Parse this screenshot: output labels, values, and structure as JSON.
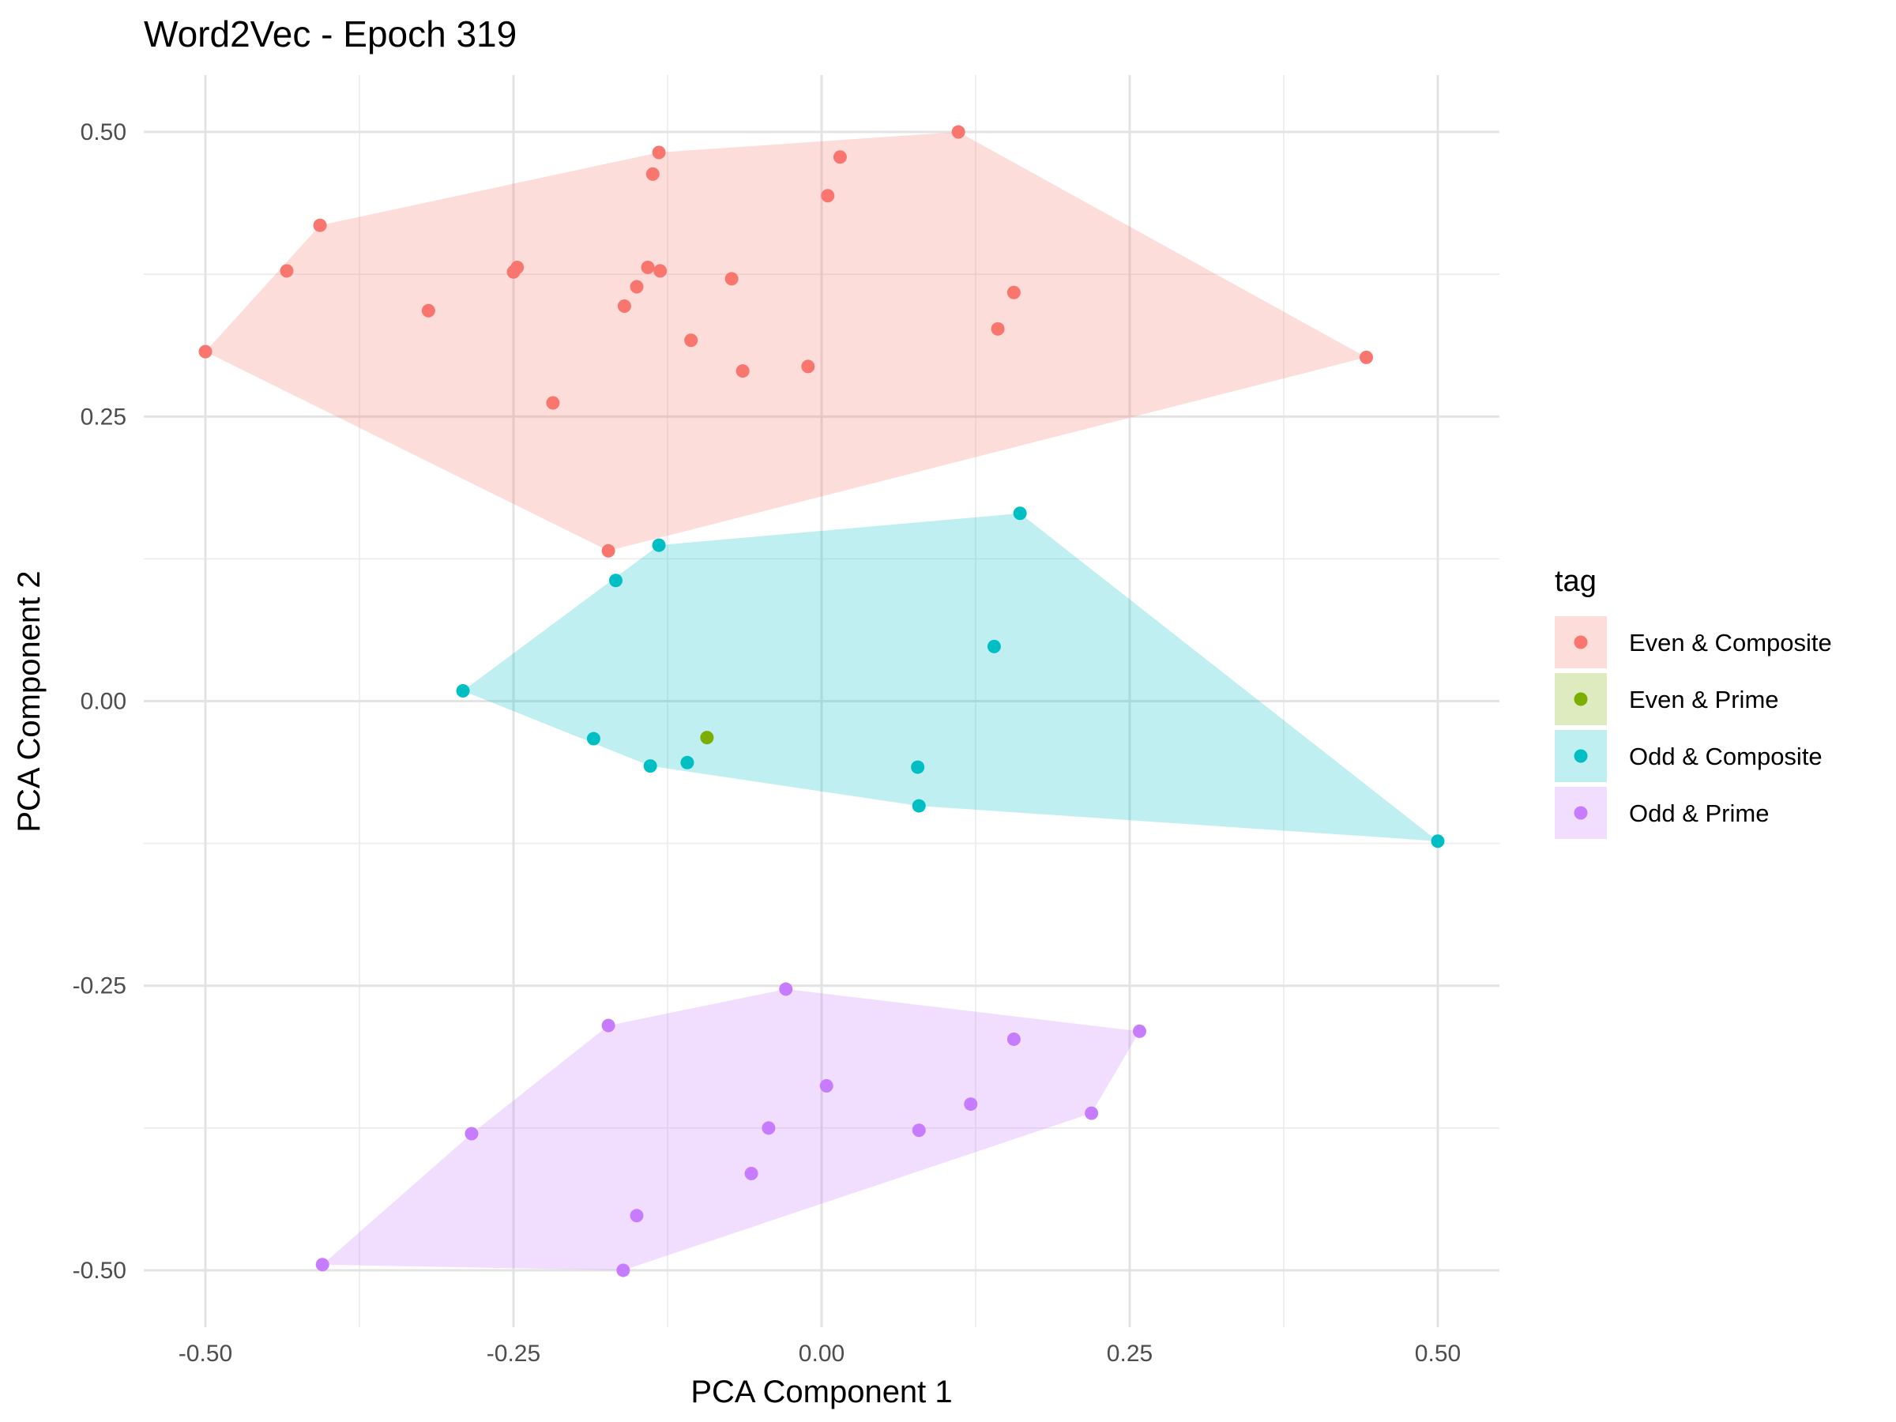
{
  "chart_data": {
    "type": "scatter",
    "title": "Word2Vec - Epoch 319",
    "xlabel": "PCA Component 1",
    "ylabel": "PCA Component 2",
    "xlim": [
      -0.55,
      0.55
    ],
    "ylim": [
      -0.55,
      0.55
    ],
    "x_ticks": [
      -0.5,
      -0.25,
      0.0,
      0.25,
      0.5
    ],
    "x_tick_labels": [
      "-0.50",
      "-0.25",
      "0.00",
      "0.25",
      "0.50"
    ],
    "y_ticks": [
      -0.5,
      -0.25,
      0.0,
      0.25,
      0.5
    ],
    "y_tick_labels": [
      "-0.50",
      "-0.25",
      "0.00",
      "0.25",
      "0.50"
    ],
    "grid": true,
    "legend_title": "tag",
    "legend_position": "right",
    "hulls": true,
    "series": [
      {
        "name": "Even & Composite",
        "color": "#F8766D",
        "points": [
          [
            -0.5,
            0.307
          ],
          [
            -0.434,
            0.378
          ],
          [
            -0.407,
            0.418
          ],
          [
            -0.319,
            0.343
          ],
          [
            -0.25,
            0.377
          ],
          [
            -0.247,
            0.381
          ],
          [
            -0.218,
            0.262
          ],
          [
            -0.173,
            0.132
          ],
          [
            -0.16,
            0.347
          ],
          [
            -0.15,
            0.364
          ],
          [
            -0.141,
            0.381
          ],
          [
            -0.137,
            0.463
          ],
          [
            -0.132,
            0.482
          ],
          [
            -0.131,
            0.378
          ],
          [
            -0.106,
            0.317
          ],
          [
            -0.073,
            0.371
          ],
          [
            -0.064,
            0.29
          ],
          [
            -0.011,
            0.294
          ],
          [
            0.005,
            0.444
          ],
          [
            0.015,
            0.478
          ],
          [
            0.111,
            0.5
          ],
          [
            0.143,
            0.327
          ],
          [
            0.156,
            0.359
          ],
          [
            0.442,
            0.302
          ]
        ]
      },
      {
        "name": "Even & Prime",
        "color": "#7CAE00",
        "points": [
          [
            -0.093,
            -0.032
          ]
        ]
      },
      {
        "name": "Odd & Composite",
        "color": "#00BFC4",
        "points": [
          [
            -0.291,
            0.009
          ],
          [
            -0.185,
            -0.033
          ],
          [
            -0.167,
            0.106
          ],
          [
            -0.139,
            -0.057
          ],
          [
            -0.132,
            0.137
          ],
          [
            -0.109,
            -0.054
          ],
          [
            0.078,
            -0.058
          ],
          [
            0.079,
            -0.092
          ],
          [
            0.14,
            0.048
          ],
          [
            0.161,
            0.165
          ],
          [
            0.5,
            -0.123
          ]
        ]
      },
      {
        "name": "Odd & Prime",
        "color": "#C77CFF",
        "points": [
          [
            -0.405,
            -0.495
          ],
          [
            -0.284,
            -0.38
          ],
          [
            -0.173,
            -0.285
          ],
          [
            -0.161,
            -0.5
          ],
          [
            -0.15,
            -0.452
          ],
          [
            -0.057,
            -0.415
          ],
          [
            -0.043,
            -0.375
          ],
          [
            -0.029,
            -0.253
          ],
          [
            0.004,
            -0.338
          ],
          [
            0.079,
            -0.377
          ],
          [
            0.121,
            -0.354
          ],
          [
            0.156,
            -0.297
          ],
          [
            0.219,
            -0.362
          ],
          [
            0.258,
            -0.29
          ]
        ]
      }
    ]
  }
}
